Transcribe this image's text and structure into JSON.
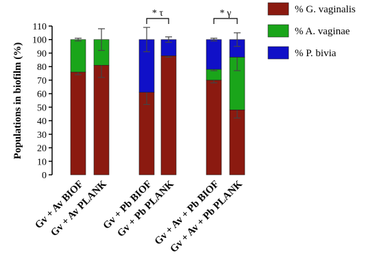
{
  "chart_data": {
    "type": "bar",
    "stacked": true,
    "ylabel": "Populations in biofilm (%)",
    "ylim": [
      0,
      110
    ],
    "yticks": [
      0,
      10,
      20,
      30,
      40,
      50,
      60,
      70,
      80,
      90,
      100,
      110
    ],
    "grid": false,
    "legend_position": "top-right",
    "categories": [
      "Gv + Av  BIOF",
      "Gv + Av  PLANK",
      "Gv + Pb  BIOF",
      "Gv + Pb  PLANK",
      "Gv + Av + Pb  BIOF",
      "Gv + Av + Pb  PLANK"
    ],
    "series": [
      {
        "name": "% G. vaginalis",
        "color": "#8b1a10",
        "values": [
          76,
          81,
          61,
          88,
          70,
          48
        ],
        "errors": [
          2,
          9,
          9,
          1,
          2,
          6
        ]
      },
      {
        "name": "% A. vaginae",
        "color": "#1aa51a",
        "values": [
          24,
          19,
          0,
          0,
          8,
          39
        ],
        "errors": [
          1,
          8,
          0,
          0,
          1,
          10
        ]
      },
      {
        "name": "% P. bivia",
        "color": "#1010c8",
        "values": [
          0,
          0,
          39,
          12,
          22,
          13
        ],
        "errors": [
          0,
          0,
          9,
          2,
          1,
          5
        ]
      }
    ],
    "annotations": [
      {
        "between": [
          2,
          3
        ],
        "text": "* τ"
      },
      {
        "between": [
          4,
          5
        ],
        "text": "* γ"
      }
    ]
  }
}
